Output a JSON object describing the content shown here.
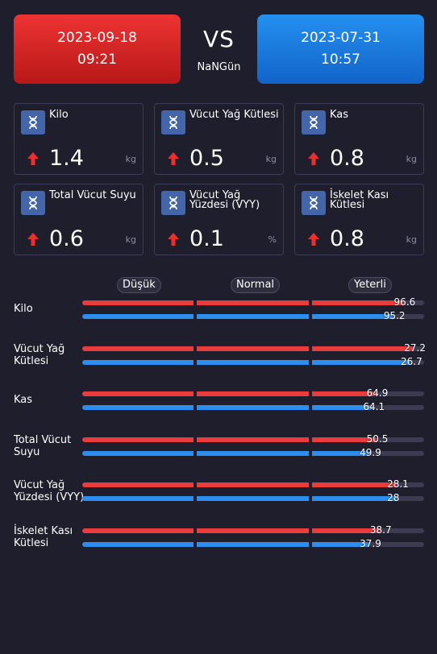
{
  "header": {
    "left": {
      "date": "2023-09-18",
      "time": "09:21",
      "color": "#e22c2c"
    },
    "right": {
      "date": "2023-07-31",
      "time": "10:57",
      "color": "#1a7ae0"
    },
    "vs": "VS",
    "days": "NaNGün"
  },
  "metrics": [
    {
      "label": "Kilo",
      "value": "1.4",
      "unit": "kg",
      "trend": "up",
      "icon": "body-composition-icon"
    },
    {
      "label": "Vücut Yağ Kütlesi",
      "value": "0.5",
      "unit": "kg",
      "trend": "up",
      "icon": "body-composition-icon"
    },
    {
      "label": "Kas",
      "value": "0.8",
      "unit": "kg",
      "trend": "up",
      "icon": "body-composition-icon"
    },
    {
      "label": "Total Vücut Suyu",
      "value": "0.6",
      "unit": "kg",
      "trend": "up",
      "icon": "body-composition-icon"
    },
    {
      "label": "Vücut Yağ Yüzdesi (VYY)",
      "value": "0.1",
      "unit": "%",
      "trend": "up",
      "icon": "body-composition-icon"
    },
    {
      "label": "İskelet Kası Kütlesi",
      "value": "0.8",
      "unit": "kg",
      "trend": "up",
      "icon": "body-composition-icon"
    }
  ],
  "comparison": {
    "columns": [
      "Düşük",
      "Normal",
      "Yeterli"
    ],
    "colors": {
      "current": "#ea3c3c",
      "previous": "#2c8ff0",
      "track": "#3b3c52"
    },
    "rows": [
      {
        "label": "Kilo",
        "current": "96.6",
        "previous": "95.2",
        "current_fill": 0.94,
        "previous_fill": 0.91
      },
      {
        "label": "Vücut Yağ Kütlesi",
        "current": "27.2",
        "previous": "26.7",
        "current_fill": 0.97,
        "previous_fill": 0.96
      },
      {
        "label": "Kas",
        "current": "64.9",
        "previous": "64.1",
        "current_fill": 0.86,
        "previous_fill": 0.85
      },
      {
        "label": "Total Vücut Suyu",
        "current": "50.5",
        "previous": "49.9",
        "current_fill": 0.86,
        "previous_fill": 0.84
      },
      {
        "label": "Vücut Yağ Yüzdesi (VYY)",
        "current": "28.1",
        "previous": "28",
        "current_fill": 0.92,
        "previous_fill": 0.92
      },
      {
        "label": "İskelet Kası Kütlesi",
        "current": "38.7",
        "previous": "37.9",
        "current_fill": 0.87,
        "previous_fill": 0.84
      }
    ]
  }
}
